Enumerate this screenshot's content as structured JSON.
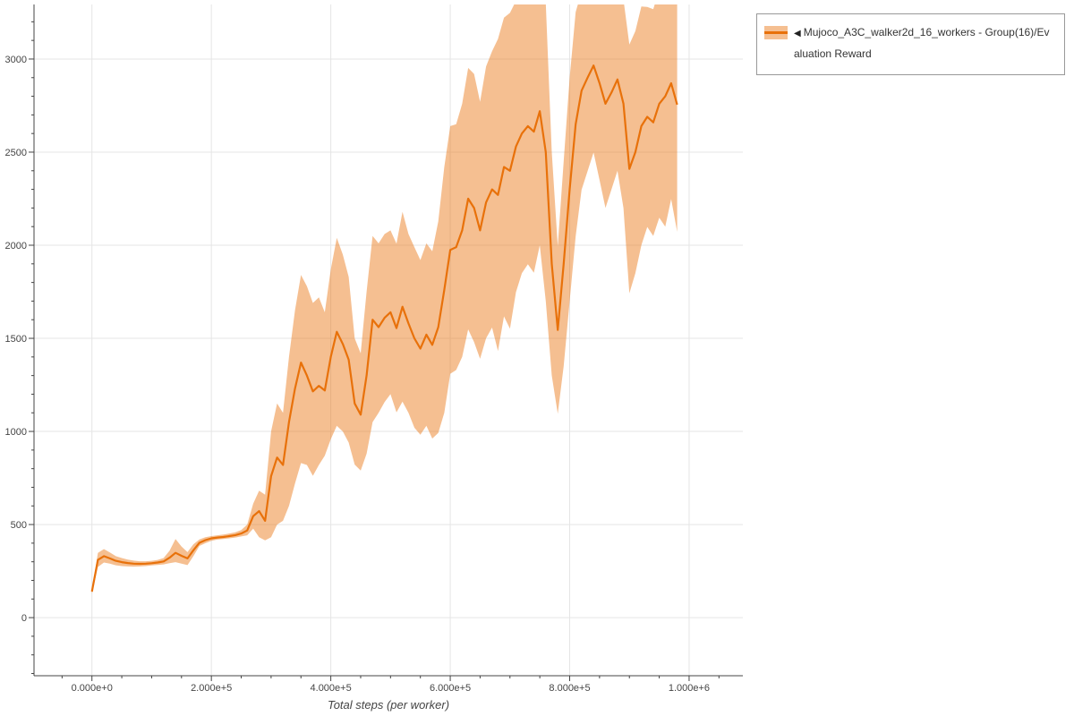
{
  "legend": {
    "toggle_icon": "◀",
    "label": "Mujoco_A3C_walker2d_16_workers - Group(16)/Evaluation Reward"
  },
  "chart_data": {
    "type": "line",
    "title": "",
    "xlabel": "Total steps (per worker)",
    "ylabel": "",
    "grid": true,
    "legend_position": "right",
    "xlim": [
      -97000,
      1090000
    ],
    "ylim": [
      -312,
      3293
    ],
    "x_ticks": {
      "values": [
        0,
        200000,
        400000,
        600000,
        800000,
        1000000
      ],
      "labels": [
        "0.000e+0",
        "2.000e+5",
        "4.000e+5",
        "6.000e+5",
        "8.000e+5",
        "1.000e+6"
      ]
    },
    "y_ticks": {
      "values": [
        0,
        500,
        1000,
        1500,
        2000,
        2500,
        3000
      ],
      "labels": [
        "0",
        "500",
        "1000",
        "1500",
        "2000",
        "2500",
        "3000"
      ]
    },
    "series": [
      {
        "name": "Mujoco_A3C_walker2d_16_workers - Group(16)/Evaluation Reward",
        "line_color": "#e8710a",
        "band_opacity": 0.45,
        "x": [
          0,
          10000,
          20000,
          30000,
          40000,
          50000,
          60000,
          70000,
          80000,
          90000,
          100000,
          110000,
          120000,
          130000,
          140000,
          150000,
          160000,
          170000,
          180000,
          190000,
          200000,
          210000,
          220000,
          230000,
          240000,
          250000,
          260000,
          270000,
          280000,
          290000,
          300000,
          310000,
          320000,
          330000,
          340000,
          350000,
          360000,
          370000,
          380000,
          390000,
          400000,
          410000,
          420000,
          430000,
          440000,
          450000,
          460000,
          470000,
          480000,
          490000,
          500000,
          510000,
          520000,
          530000,
          540000,
          550000,
          560000,
          570000,
          580000,
          590000,
          600000,
          610000,
          620000,
          630000,
          640000,
          650000,
          660000,
          670000,
          680000,
          690000,
          700000,
          710000,
          720000,
          730000,
          740000,
          750000,
          760000,
          770000,
          780000,
          790000,
          800000,
          810000,
          820000,
          830000,
          840000,
          850000,
          860000,
          870000,
          880000,
          890000,
          900000,
          910000,
          920000,
          930000,
          940000,
          950000,
          960000,
          970000,
          980000
        ],
        "mean": [
          140,
          310,
          330,
          318,
          305,
          298,
          293,
          290,
          289,
          290,
          292,
          296,
          302,
          322,
          348,
          332,
          318,
          362,
          402,
          416,
          426,
          430,
          433,
          438,
          443,
          452,
          468,
          545,
          572,
          520,
          760,
          860,
          820,
          1050,
          1230,
          1370,
          1300,
          1215,
          1245,
          1220,
          1400,
          1535,
          1470,
          1385,
          1150,
          1090,
          1300,
          1600,
          1560,
          1610,
          1640,
          1555,
          1670,
          1580,
          1500,
          1445,
          1520,
          1465,
          1560,
          1760,
          1975,
          1990,
          2080,
          2250,
          2200,
          2080,
          2230,
          2300,
          2270,
          2420,
          2400,
          2530,
          2600,
          2640,
          2610,
          2720,
          2500,
          1900,
          1545,
          1900,
          2300,
          2650,
          2830,
          2900,
          2965,
          2870,
          2760,
          2820,
          2890,
          2760,
          2410,
          2500,
          2640,
          2690,
          2660,
          2760,
          2800,
          2870,
          2755
        ],
        "lower": [
          128,
          272,
          296,
          290,
          281,
          277,
          275,
          274,
          275,
          277,
          280,
          283,
          286,
          292,
          298,
          290,
          282,
          330,
          385,
          400,
          413,
          419,
          422,
          426,
          430,
          436,
          442,
          478,
          432,
          415,
          432,
          500,
          520,
          600,
          720,
          830,
          820,
          762,
          820,
          870,
          958,
          1030,
          1000,
          940,
          822,
          790,
          880,
          1050,
          1100,
          1158,
          1200,
          1102,
          1160,
          1100,
          1020,
          982,
          1030,
          962,
          992,
          1100,
          1310,
          1330,
          1400,
          1548,
          1480,
          1390,
          1500,
          1558,
          1432,
          1618,
          1552,
          1748,
          1850,
          1898,
          1852,
          2000,
          1700,
          1300,
          1095,
          1350,
          1700,
          2048,
          2298,
          2398,
          2498,
          2350,
          2200,
          2300,
          2400,
          2200,
          1742,
          1850,
          2000,
          2098,
          2050,
          2148,
          2100,
          2248,
          2072
        ],
        "upper": [
          152,
          348,
          368,
          350,
          330,
          320,
          312,
          306,
          303,
          303,
          305,
          310,
          320,
          360,
          422,
          382,
          352,
          394,
          420,
          432,
          438,
          442,
          446,
          452,
          458,
          470,
          500,
          612,
          682,
          660,
          1000,
          1150,
          1100,
          1400,
          1650,
          1840,
          1780,
          1690,
          1720,
          1640,
          1870,
          2040,
          1950,
          1830,
          1500,
          1420,
          1750,
          2050,
          2010,
          2060,
          2080,
          2008,
          2180,
          2060,
          1990,
          1920,
          2010,
          1968,
          2128,
          2420,
          2640,
          2650,
          2760,
          2952,
          2920,
          2770,
          2960,
          3042,
          3108,
          3222,
          3248,
          3312,
          3350,
          3382,
          3368,
          3440,
          3300,
          2500,
          1995,
          2450,
          2900,
          3252,
          3362,
          3402,
          3432,
          3390,
          3318,
          3340,
          3382,
          3320,
          3078,
          3150,
          3282,
          3280,
          3268,
          3372,
          3500,
          3492,
          3440
        ]
      }
    ],
    "colors": {
      "gridline": "#e5e5e5",
      "axis": "#444444",
      "tick_label": "#444444"
    }
  }
}
